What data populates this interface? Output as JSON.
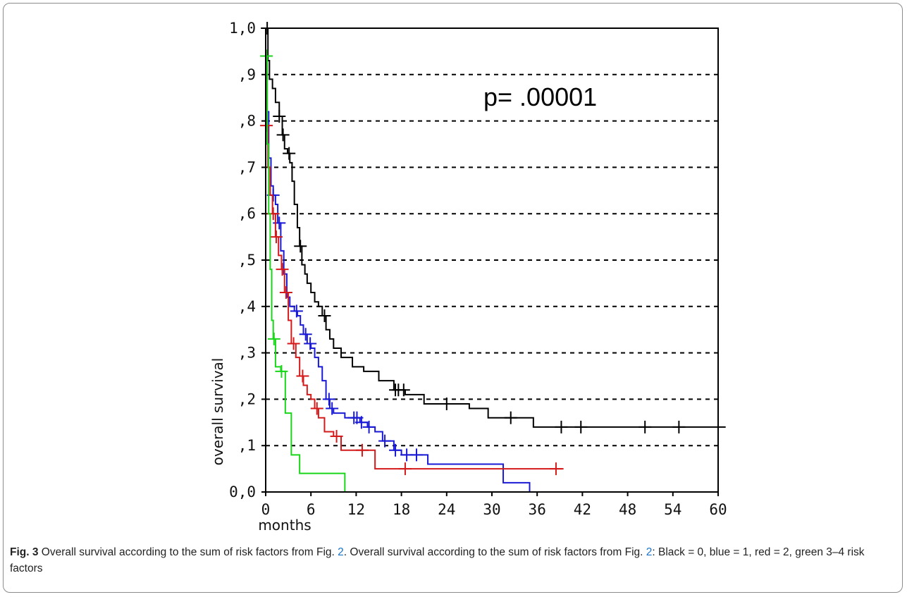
{
  "chart_data": {
    "type": "line",
    "subtype": "kaplan-meier step",
    "xlabel": "months",
    "ylabel": "overall survival",
    "xlim": [
      0,
      60
    ],
    "ylim": [
      0,
      1
    ],
    "x_ticks": [
      0,
      6,
      12,
      18,
      24,
      30,
      36,
      42,
      48,
      54,
      60
    ],
    "x_tick_labels": [
      "0",
      "6",
      "12",
      "18",
      "24",
      "30",
      "36",
      "42",
      "48",
      "54",
      "60"
    ],
    "y_ticks": [
      0,
      0.1,
      0.2,
      0.3,
      0.4,
      0.5,
      0.6,
      0.7,
      0.8,
      0.9,
      1.0
    ],
    "y_tick_labels": [
      "0,0",
      ",1",
      ",2",
      ",3",
      ",4",
      ",5",
      ",6",
      ",7",
      ",8",
      ",9",
      "1,0"
    ],
    "grid": "horizontal dashed",
    "annotation": "p= .00001",
    "series": [
      {
        "color": "#000000",
        "points": [
          [
            0,
            1.0
          ],
          [
            0.3,
            0.93
          ],
          [
            0.5,
            0.89
          ],
          [
            0.9,
            0.87
          ],
          [
            1.3,
            0.84
          ],
          [
            1.8,
            0.81
          ],
          [
            2.2,
            0.77
          ],
          [
            2.5,
            0.74
          ],
          [
            2.9,
            0.73
          ],
          [
            3.2,
            0.71
          ],
          [
            3.5,
            0.67
          ],
          [
            3.8,
            0.62
          ],
          [
            4.2,
            0.57
          ],
          [
            4.5,
            0.53
          ],
          [
            4.8,
            0.49
          ],
          [
            5.2,
            0.47
          ],
          [
            5.5,
            0.45
          ],
          [
            6.0,
            0.43
          ],
          [
            6.5,
            0.41
          ],
          [
            7.0,
            0.4
          ],
          [
            7.5,
            0.38
          ],
          [
            8.0,
            0.35
          ],
          [
            8.5,
            0.33
          ],
          [
            9.0,
            0.31
          ],
          [
            10.0,
            0.29
          ],
          [
            11.5,
            0.27
          ],
          [
            13.0,
            0.26
          ],
          [
            15.0,
            0.24
          ],
          [
            17.0,
            0.22
          ],
          [
            18.5,
            0.21
          ],
          [
            21.0,
            0.19
          ],
          [
            27.0,
            0.18
          ],
          [
            29.5,
            0.16
          ],
          [
            35.5,
            0.14
          ],
          [
            61.0,
            0.14
          ]
        ],
        "censor_x": [
          0.2,
          1.8,
          2.3,
          3.1,
          4.6,
          7.8,
          17.2,
          17.6,
          18.3,
          24.0,
          32.5,
          39.2,
          41.8,
          50.3,
          54.8
        ]
      },
      {
        "color": "#1a1ad6",
        "points": [
          [
            0,
            0.94
          ],
          [
            0.2,
            0.82
          ],
          [
            0.4,
            0.72
          ],
          [
            0.7,
            0.66
          ],
          [
            1.0,
            0.64
          ],
          [
            1.3,
            0.62
          ],
          [
            1.6,
            0.58
          ],
          [
            2.0,
            0.52
          ],
          [
            2.4,
            0.47
          ],
          [
            2.8,
            0.42
          ],
          [
            3.2,
            0.4
          ],
          [
            3.8,
            0.39
          ],
          [
            4.2,
            0.38
          ],
          [
            4.6,
            0.36
          ],
          [
            5.0,
            0.34
          ],
          [
            5.5,
            0.32
          ],
          [
            6.0,
            0.31
          ],
          [
            6.5,
            0.29
          ],
          [
            7.0,
            0.27
          ],
          [
            7.5,
            0.24
          ],
          [
            8.0,
            0.2
          ],
          [
            8.5,
            0.18
          ],
          [
            9.0,
            0.17
          ],
          [
            10.5,
            0.16
          ],
          [
            12.5,
            0.15
          ],
          [
            13.5,
            0.14
          ],
          [
            14.5,
            0.13
          ],
          [
            15.5,
            0.11
          ],
          [
            17.0,
            0.09
          ],
          [
            18.0,
            0.08
          ],
          [
            21.5,
            0.06
          ],
          [
            31.5,
            0.02
          ],
          [
            35.0,
            0.0
          ]
        ],
        "censor_x": [
          1.0,
          1.8,
          4.1,
          5.3,
          5.9,
          8.4,
          8.8,
          11.7,
          12.1,
          12.7,
          13.7,
          15.8,
          17.2,
          18.7,
          20.0
        ]
      },
      {
        "color": "#d41a1a",
        "points": [
          [
            0,
            0.95
          ],
          [
            0.1,
            0.79
          ],
          [
            0.3,
            0.7
          ],
          [
            0.6,
            0.64
          ],
          [
            0.9,
            0.6
          ],
          [
            1.3,
            0.55
          ],
          [
            1.7,
            0.51
          ],
          [
            2.1,
            0.48
          ],
          [
            2.5,
            0.43
          ],
          [
            3.0,
            0.37
          ],
          [
            3.4,
            0.32
          ],
          [
            4.0,
            0.29
          ],
          [
            4.5,
            0.25
          ],
          [
            5.0,
            0.23
          ],
          [
            5.5,
            0.21
          ],
          [
            6.0,
            0.2
          ],
          [
            6.5,
            0.18
          ],
          [
            7.0,
            0.16
          ],
          [
            7.8,
            0.13
          ],
          [
            9.0,
            0.12
          ],
          [
            10.0,
            0.09
          ],
          [
            14.5,
            0.05
          ],
          [
            39.5,
            0.05
          ]
        ],
        "censor_x": [
          0.1,
          1.0,
          1.4,
          2.2,
          2.7,
          3.7,
          4.9,
          6.8,
          9.4,
          12.8,
          18.5,
          38.5
        ]
      },
      {
        "color": "#1ad61a",
        "points": [
          [
            0,
            0.94
          ],
          [
            0.2,
            0.75
          ],
          [
            0.4,
            0.6
          ],
          [
            0.6,
            0.48
          ],
          [
            0.8,
            0.37
          ],
          [
            1.0,
            0.33
          ],
          [
            1.3,
            0.27
          ],
          [
            2.0,
            0.26
          ],
          [
            2.6,
            0.17
          ],
          [
            3.4,
            0.08
          ],
          [
            4.5,
            0.04
          ],
          [
            10.5,
            0.0
          ]
        ],
        "censor_x": [
          0.1,
          1.1,
          2.1
        ]
      }
    ]
  },
  "caption": {
    "label": "Fig. 3",
    "text_a": " Overall survival according to the sum of risk factors from Fig. ",
    "ref_1": "2",
    "text_b": ". Overall survival according to the sum of risk factors from Fig. ",
    "ref_2": "2",
    "text_c": ": Black = 0, blue = 1, red = 2, green 3–4 risk factors"
  }
}
